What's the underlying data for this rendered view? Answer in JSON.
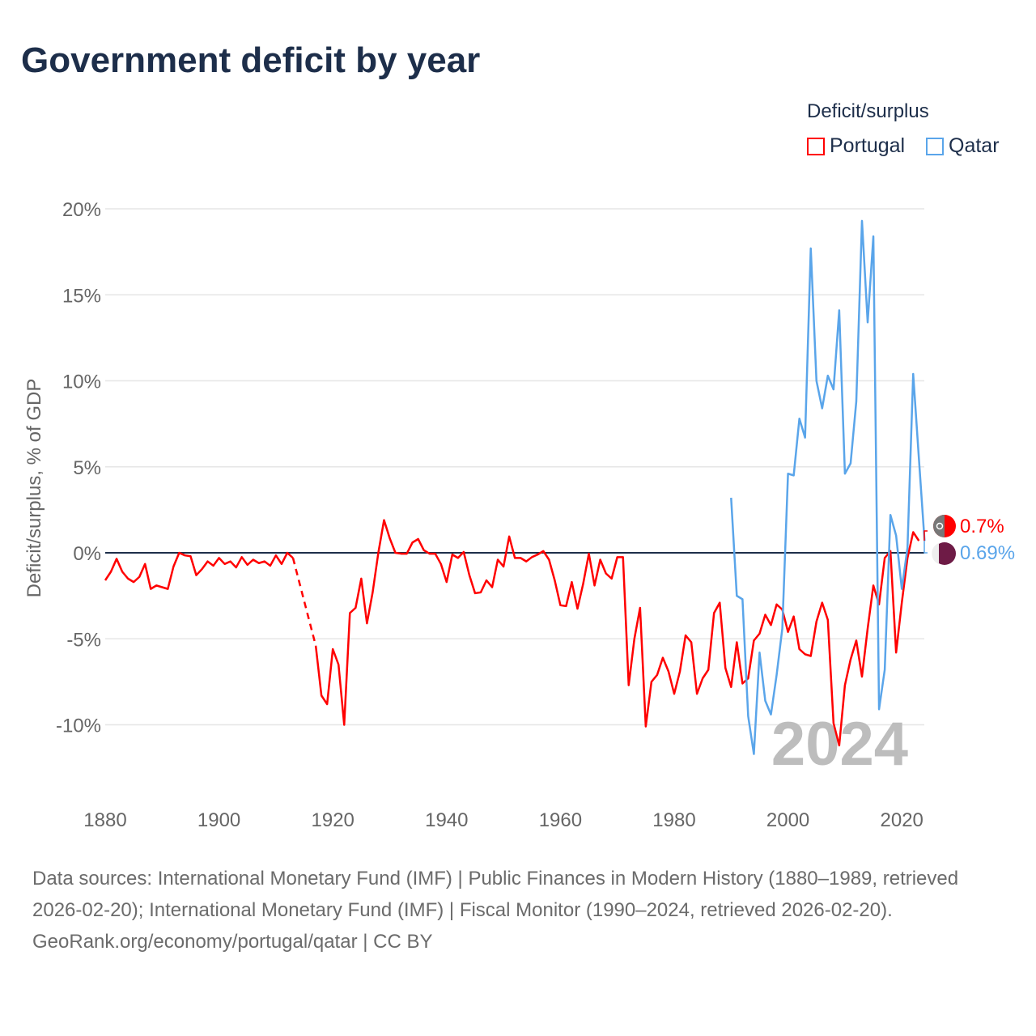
{
  "title": "Government deficit by year",
  "legend": {
    "title": "Deficit/surplus",
    "items": [
      {
        "label": "Portugal",
        "color": "#ff0000"
      },
      {
        "label": "Qatar",
        "color": "#5aa5ea"
      }
    ]
  },
  "watermark_year": "2024",
  "end_labels": {
    "portugal": "0.7%",
    "qatar": "0.69%"
  },
  "footer": {
    "sources": "Data sources: International Monetary Fund (IMF) | Public Finances in Modern History (1880–1989, retrieved 2026-02-20); International Monetary Fund (IMF) | Fiscal Monitor (1990–2024, retrieved 2026-02-20).",
    "credit": "GeoRank.org/economy/portugal/qatar | CC BY"
  },
  "chart_data": {
    "type": "line",
    "title": "Government deficit by year",
    "xlabel": "",
    "ylabel": "Deficit/surplus, % of GDP",
    "xlim": [
      1880,
      2024
    ],
    "ylim": [
      -12.5,
      20
    ],
    "xticks": [
      1880,
      1900,
      1920,
      1940,
      1960,
      1980,
      2000,
      2020
    ],
    "yticks": [
      -10,
      -5,
      0,
      5,
      10,
      15,
      20
    ],
    "ytick_labels": [
      "-10%",
      "-5%",
      "0%",
      "5%",
      "10%",
      "15%",
      "20%"
    ],
    "legend_position": "top-right",
    "series": [
      {
        "name": "Portugal",
        "color": "#ff0000",
        "start": 1880,
        "gap": [
          1914,
          1916
        ],
        "values": [
          -1.6,
          -1.1,
          -0.35,
          -1.1,
          -1.5,
          -1.7,
          -1.4,
          -0.65,
          -2.1,
          -1.9,
          -2.0,
          -2.1,
          -0.8,
          0,
          -0.15,
          -0.2,
          -1.3,
          -0.95,
          -0.5,
          -0.75,
          -0.3,
          -0.65,
          -0.5,
          -0.85,
          -0.25,
          -0.7,
          -0.4,
          -0.6,
          -0.5,
          -0.75,
          -0.15,
          -0.65,
          0,
          -0.3,
          null,
          null,
          null,
          -5.4,
          -8.3,
          -8.8,
          -5.6,
          -6.5,
          -10.0,
          -3.5,
          -3.2,
          -1.5,
          -4.1,
          -2.3,
          0,
          1.9,
          0.85,
          0,
          -0.05,
          -0.05,
          0.6,
          0.8,
          0.15,
          -0.05,
          -0.05,
          -0.65,
          -1.7,
          -0.1,
          -0.3,
          0.05,
          -1.3,
          -2.35,
          -2.3,
          -1.6,
          -2.0,
          -0.4,
          -0.8,
          0.95,
          -0.3,
          -0.3,
          -0.5,
          -0.25,
          -0.1,
          0.1,
          -0.4,
          -1.6,
          -3.05,
          -3.1,
          -1.7,
          -3.25,
          -1.8,
          -0.05,
          -1.9,
          -0.4,
          -1.2,
          -1.5,
          -0.25,
          -0.25,
          -7.7,
          -5.0,
          -3.2,
          -10.1,
          -7.5,
          -7.1,
          -6.1,
          -6.9,
          -8.2,
          -6.9,
          -4.8,
          -5.2,
          -8.2,
          -7.3,
          -6.8,
          -3.5,
          -2.9,
          -6.7,
          -7.8,
          -5.2,
          -7.6,
          -7.3,
          -5.1,
          -4.7,
          -3.6,
          -4.2,
          -3.0,
          -3.3,
          -4.6,
          -3.7,
          -5.6,
          -5.9,
          -6.0,
          -4.0,
          -2.9,
          -3.9,
          -9.9,
          -11.2,
          -7.7,
          -6.2,
          -5.1,
          -7.2,
          -4.4,
          -1.9,
          -3.0,
          -0.3,
          0.1,
          -5.8,
          -2.9,
          -0.3,
          1.2,
          0.7
        ]
      },
      {
        "name": "Qatar",
        "color": "#5aa5ea",
        "start": 1990,
        "values": [
          3.2,
          -2.5,
          -2.7,
          -9.5,
          -11.7,
          -5.8,
          -8.6,
          -9.4,
          -7.1,
          -4.4,
          4.6,
          4.5,
          7.8,
          6.7,
          17.7,
          10.0,
          8.4,
          10.3,
          9.5,
          14.1,
          4.6,
          5.2,
          8.8,
          19.3,
          13.4,
          18.4,
          -9.1,
          -6.8,
          2.2,
          1.0,
          -2.1,
          0.3,
          10.4,
          5.5,
          0.69
        ]
      }
    ]
  }
}
